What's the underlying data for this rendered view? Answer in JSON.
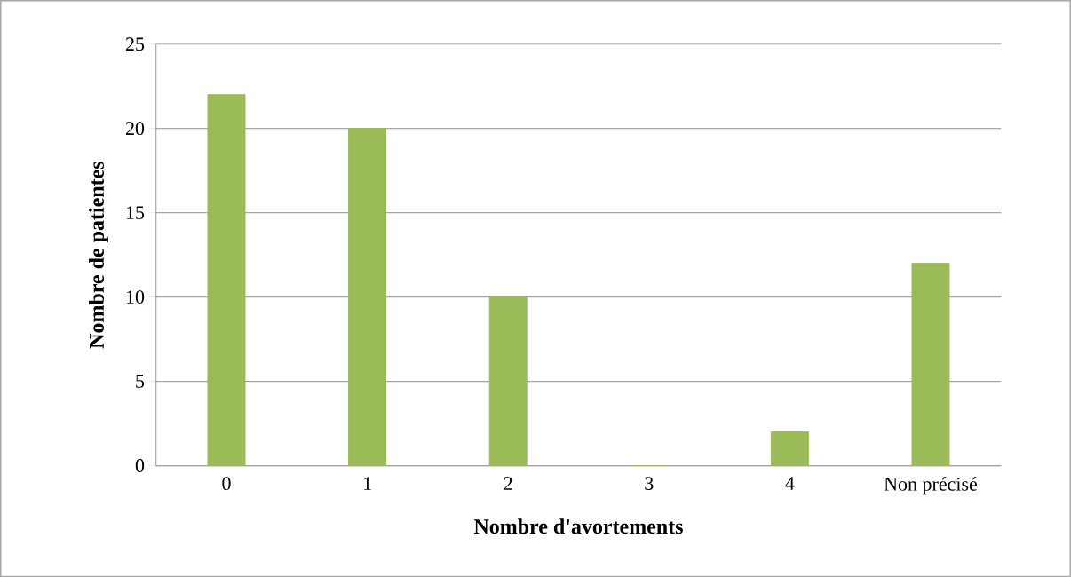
{
  "chart_data": {
    "type": "bar",
    "xlabel": "Nombre d'avortements",
    "ylabel": "Nombre de patientes",
    "categories": [
      "0",
      "1",
      "2",
      "3",
      "4",
      "Non précisé"
    ],
    "values": [
      22,
      20,
      10,
      0,
      2,
      12
    ],
    "color": "#9bbb59",
    "ylim": [
      0,
      25
    ],
    "yticks": [
      0,
      5,
      10,
      15,
      20,
      25
    ],
    "grid": "y"
  }
}
